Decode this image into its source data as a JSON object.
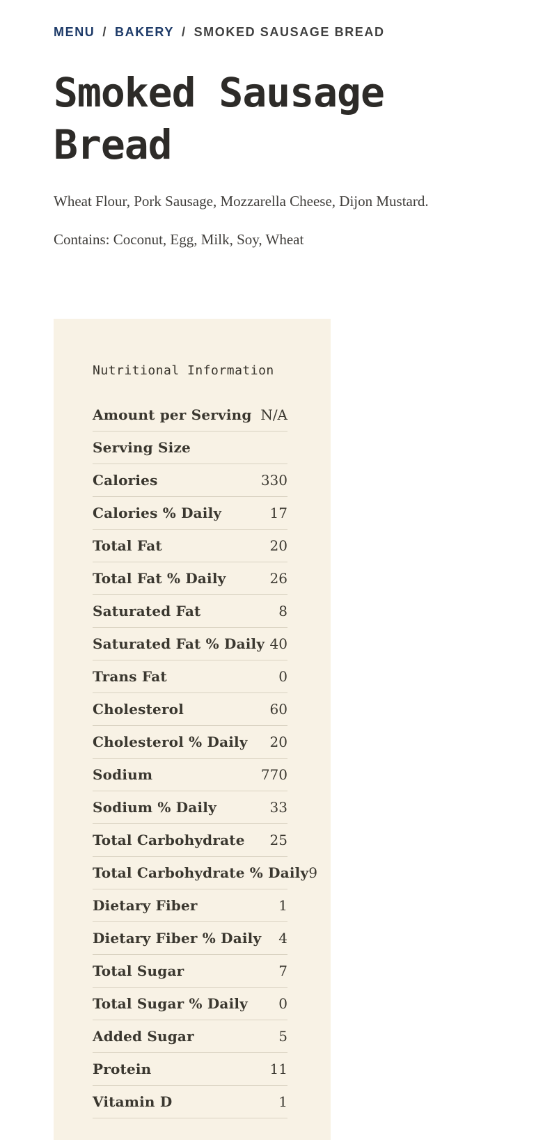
{
  "breadcrumb": {
    "separator": "/",
    "items": [
      {
        "label": "MENU"
      },
      {
        "label": "BAKERY"
      },
      {
        "label": "SMOKED SAUSAGE BREAD"
      }
    ]
  },
  "page": {
    "title": "Smoked Sausage Bread",
    "ingredients": "Wheat Flour, Pork Sausage, Mozzarella Cheese, Dijon Mustard.",
    "contains": "Contains: Coconut, Egg, Milk, Soy, Wheat"
  },
  "nutrition": {
    "heading": "Nutritional Information",
    "rows": [
      {
        "label": "Amount per Serving",
        "value": "N/A"
      },
      {
        "label": "Serving Size",
        "value": ""
      },
      {
        "label": "Calories",
        "value": "330"
      },
      {
        "label": "Calories % Daily",
        "value": "17"
      },
      {
        "label": "Total Fat",
        "value": "20"
      },
      {
        "label": "Total Fat % Daily",
        "value": "26"
      },
      {
        "label": "Saturated Fat",
        "value": "8"
      },
      {
        "label": "Saturated Fat % Daily",
        "value": "40"
      },
      {
        "label": "Trans Fat",
        "value": "0"
      },
      {
        "label": "Cholesterol",
        "value": "60"
      },
      {
        "label": "Cholesterol % Daily",
        "value": "20"
      },
      {
        "label": "Sodium",
        "value": "770"
      },
      {
        "label": "Sodium % Daily",
        "value": "33"
      },
      {
        "label": "Total Carbohydrate",
        "value": "25"
      },
      {
        "label": "Total Carbohydrate % Daily",
        "value": "9"
      },
      {
        "label": "Dietary Fiber",
        "value": "1"
      },
      {
        "label": "Dietary Fiber % Daily",
        "value": "4"
      },
      {
        "label": "Total Sugar",
        "value": "7"
      },
      {
        "label": "Total Sugar % Daily",
        "value": "0"
      },
      {
        "label": "Added Sugar",
        "value": "5"
      },
      {
        "label": "Protein",
        "value": "11"
      },
      {
        "label": "Vitamin D",
        "value": "1"
      }
    ]
  },
  "colors": {
    "link_navy": "#1d3a68",
    "text_dark": "#3a372f",
    "card_background": "#f8f2e5",
    "divider": "#d9d2c1"
  }
}
